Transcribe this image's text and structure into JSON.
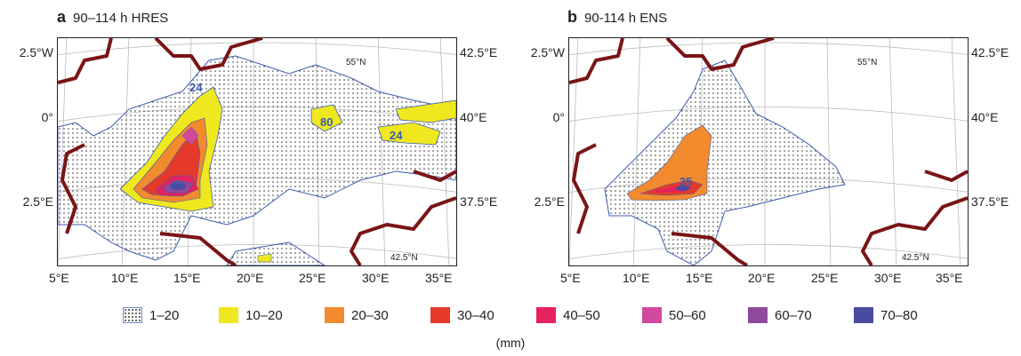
{
  "panels": [
    {
      "letter": "a",
      "title": "90–114 h HRES",
      "left_labels": [
        "2.5°W",
        "0°",
        "2.5°E"
      ],
      "right_labels": [
        "42.5°E",
        "40°E",
        "37.5°E"
      ],
      "bottom_labels": [
        "5°E",
        "10°E",
        "15°E",
        "20°E",
        "25°E",
        "30°E",
        "35°E"
      ],
      "inner_labels": {
        "top_lat": "55°N",
        "bottom_lat": "42.5°N"
      },
      "max_values": [
        "80",
        "24",
        "24",
        "77"
      ]
    },
    {
      "letter": "b",
      "title": "90-114 h ENS",
      "left_labels": [
        "2.5°W",
        "0°",
        "2.5°E"
      ],
      "right_labels": [
        "42.5°E",
        "40°E",
        "37.5°E"
      ],
      "bottom_labels": [
        "5°E",
        "10°E",
        "15°E",
        "20°E",
        "25°E",
        "30°E",
        "35°E"
      ],
      "inner_labels": {
        "top_lat": "55°N",
        "bottom_lat": "42.5°N"
      },
      "max_values": [
        "35"
      ]
    }
  ],
  "legend": {
    "items": [
      {
        "label": "1–20",
        "color": "stipple"
      },
      {
        "label": "10–20",
        "color": "#f0e81e"
      },
      {
        "label": "20–30",
        "color": "#f28a2e"
      },
      {
        "label": "30–40",
        "color": "#e53a2a"
      },
      {
        "label": "40–50",
        "color": "#e5215e"
      },
      {
        "label": "50–60",
        "color": "#d1499c"
      },
      {
        "label": "60–70",
        "color": "#8f4a9e"
      },
      {
        "label": "70–80",
        "color": "#4a4aa0"
      }
    ],
    "units": "(mm)"
  },
  "colors": {
    "coast": "#7a1416",
    "contour": "#3b5bb0",
    "grid": "#bbbbbb"
  }
}
